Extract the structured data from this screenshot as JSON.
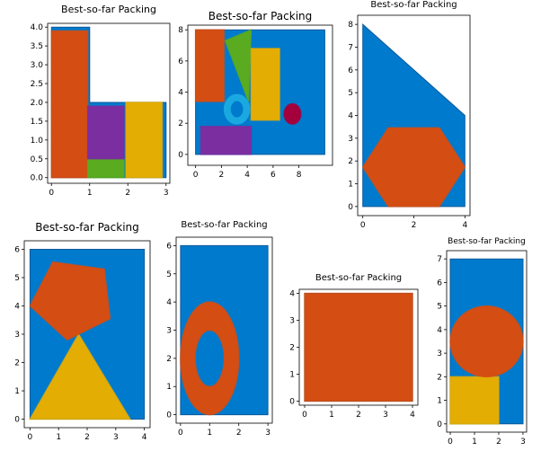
{
  "colors": {
    "container": "#007acc",
    "red": "#d44d12",
    "purple": "#7a2ea0",
    "green": "#5aab1f",
    "yellow": "#e3ad04",
    "cyan": "#1aa8e0",
    "crimson": "#a3003c"
  },
  "chart_data": [
    {
      "type": "packing",
      "title": "Best-so-far Packing",
      "xlim": [
        -0.1,
        3.1
      ],
      "ylim": [
        -0.15,
        4.1
      ],
      "xticks": [
        0,
        1,
        2,
        3
      ],
      "yticks": [
        0.0,
        0.5,
        1.0,
        1.5,
        2.0,
        2.5,
        3.0,
        3.5,
        4.0
      ],
      "ytick_labels": [
        "0.0",
        "0.5",
        "1.0",
        "1.5",
        "2.0",
        "2.5",
        "3.0",
        "3.5",
        "4.0"
      ],
      "container": [
        [
          0,
          0
        ],
        [
          0,
          4
        ],
        [
          1,
          4
        ],
        [
          1,
          2
        ],
        [
          3,
          2
        ],
        [
          3,
          0
        ]
      ],
      "items": [
        {
          "kind": "rect",
          "color": "red",
          "x": 0,
          "y": 0,
          "w": 0.95,
          "h": 3.9
        },
        {
          "kind": "rect",
          "color": "green",
          "x": 0.95,
          "y": 0,
          "w": 0.95,
          "h": 0.5
        },
        {
          "kind": "rect",
          "color": "purple",
          "x": 0.95,
          "y": 0.5,
          "w": 0.95,
          "h": 1.4
        },
        {
          "kind": "rect",
          "color": "yellow",
          "x": 1.95,
          "y": 0,
          "w": 0.95,
          "h": 2.0
        }
      ]
    },
    {
      "type": "packing",
      "title": "Best-so-far Packing",
      "xlim": [
        -0.6,
        10.6
      ],
      "ylim": [
        -0.7,
        8.3
      ],
      "xticks": [
        0,
        2,
        4,
        6,
        8
      ],
      "yticks": [
        0,
        2,
        4,
        6,
        8
      ],
      "container": [
        [
          0,
          0
        ],
        [
          0,
          8
        ],
        [
          10,
          8
        ],
        [
          10,
          0
        ]
      ],
      "items": [
        {
          "kind": "rect",
          "color": "red",
          "x": 0,
          "y": 3.4,
          "w": 2.2,
          "h": 4.6
        },
        {
          "kind": "polygon",
          "color": "green",
          "points": [
            [
              2.3,
              7.3
            ],
            [
              4.3,
              8
            ],
            [
              4.1,
              3.4
            ]
          ]
        },
        {
          "kind": "rect",
          "color": "yellow",
          "x": 4.3,
          "y": 2.2,
          "w": 2.2,
          "h": 4.6
        },
        {
          "kind": "rect",
          "color": "purple",
          "x": 0.4,
          "y": 0,
          "w": 3.9,
          "h": 1.8
        },
        {
          "kind": "ring",
          "color": "cyan",
          "cx": 3.2,
          "cy": 2.9,
          "r": 0.75,
          "sw": 0.55
        },
        {
          "kind": "circle",
          "color": "crimson",
          "cx": 7.5,
          "cy": 2.6,
          "r": 0.65
        }
      ]
    },
    {
      "type": "packing",
      "title": "Best-so-far Packing",
      "xlim": [
        -0.2,
        4.2
      ],
      "ylim": [
        -0.4,
        8.4
      ],
      "xticks": [
        0,
        2,
        4
      ],
      "yticks": [
        0,
        1,
        2,
        3,
        4,
        5,
        6,
        7,
        8
      ],
      "container": [
        [
          0,
          0
        ],
        [
          0,
          8
        ],
        [
          4,
          4
        ],
        [
          4,
          0
        ]
      ],
      "items": [
        {
          "kind": "polygon",
          "color": "red",
          "points": [
            [
              1,
              0
            ],
            [
              3,
              0
            ],
            [
              4,
              1.73
            ],
            [
              3,
              3.46
            ],
            [
              1,
              3.46
            ],
            [
              0,
              1.73
            ]
          ]
        }
      ]
    },
    {
      "type": "packing",
      "title": "Best-so-far Packing",
      "xlim": [
        -0.2,
        4.2
      ],
      "ylim": [
        -0.3,
        6.3
      ],
      "xticks": [
        0,
        1,
        2,
        3,
        4
      ],
      "yticks": [
        0,
        1,
        2,
        3,
        4,
        5,
        6
      ],
      "container": [
        [
          0,
          0
        ],
        [
          0,
          6
        ],
        [
          4,
          6
        ],
        [
          4,
          0
        ]
      ],
      "items": [
        {
          "kind": "polygon",
          "color": "yellow",
          "points": [
            [
              0,
              0
            ],
            [
              1.7,
              3.0
            ],
            [
              3.5,
              0
            ]
          ]
        },
        {
          "kind": "polygon",
          "color": "red",
          "points": [
            [
              0,
              4.0
            ],
            [
              0.8,
              5.55
            ],
            [
              2.6,
              5.3
            ],
            [
              2.8,
              3.55
            ],
            [
              1.3,
              2.8
            ]
          ]
        }
      ]
    },
    {
      "type": "packing",
      "title": "Best-so-far Packing",
      "xlim": [
        -0.15,
        3.15
      ],
      "ylim": [
        -0.3,
        6.3
      ],
      "xticks": [
        0,
        1,
        2,
        3
      ],
      "yticks": [
        0,
        1,
        2,
        3,
        4,
        5,
        6
      ],
      "container": [
        [
          0,
          0
        ],
        [
          0,
          6
        ],
        [
          3,
          6
        ],
        [
          3,
          0
        ]
      ],
      "items": [
        {
          "kind": "ellipse-ring",
          "color": "red",
          "cx": 1,
          "cy": 2,
          "rx": 1,
          "ry": 2,
          "irx": 0.5,
          "iry": 1
        }
      ]
    },
    {
      "type": "packing",
      "title": "Best-so-far Packing",
      "xlim": [
        -0.2,
        4.2
      ],
      "ylim": [
        -0.15,
        4.15
      ],
      "xticks": [
        0,
        1,
        2,
        3,
        4
      ],
      "yticks": [
        0,
        1,
        2,
        3,
        4
      ],
      "container": [
        [
          0,
          0
        ],
        [
          0,
          4
        ],
        [
          4,
          4
        ],
        [
          4,
          0
        ]
      ],
      "items": [
        {
          "kind": "rect",
          "color": "red",
          "x": 0,
          "y": 0,
          "w": 4,
          "h": 4
        }
      ]
    },
    {
      "type": "packing",
      "title": "Best-so-far Packing",
      "xlim": [
        -0.15,
        3.15
      ],
      "ylim": [
        -0.35,
        7.35
      ],
      "xticks": [
        0,
        1,
        2,
        3
      ],
      "yticks": [
        0,
        1,
        2,
        3,
        4,
        5,
        6,
        7
      ],
      "container": [
        [
          0,
          0
        ],
        [
          0,
          7
        ],
        [
          3,
          7
        ],
        [
          3,
          0
        ]
      ],
      "items": [
        {
          "kind": "rect",
          "color": "yellow",
          "x": 0,
          "y": 0,
          "w": 2,
          "h": 2
        },
        {
          "kind": "circle",
          "color": "red",
          "cx": 1.5,
          "cy": 3.5,
          "r": 1.5
        }
      ]
    }
  ]
}
